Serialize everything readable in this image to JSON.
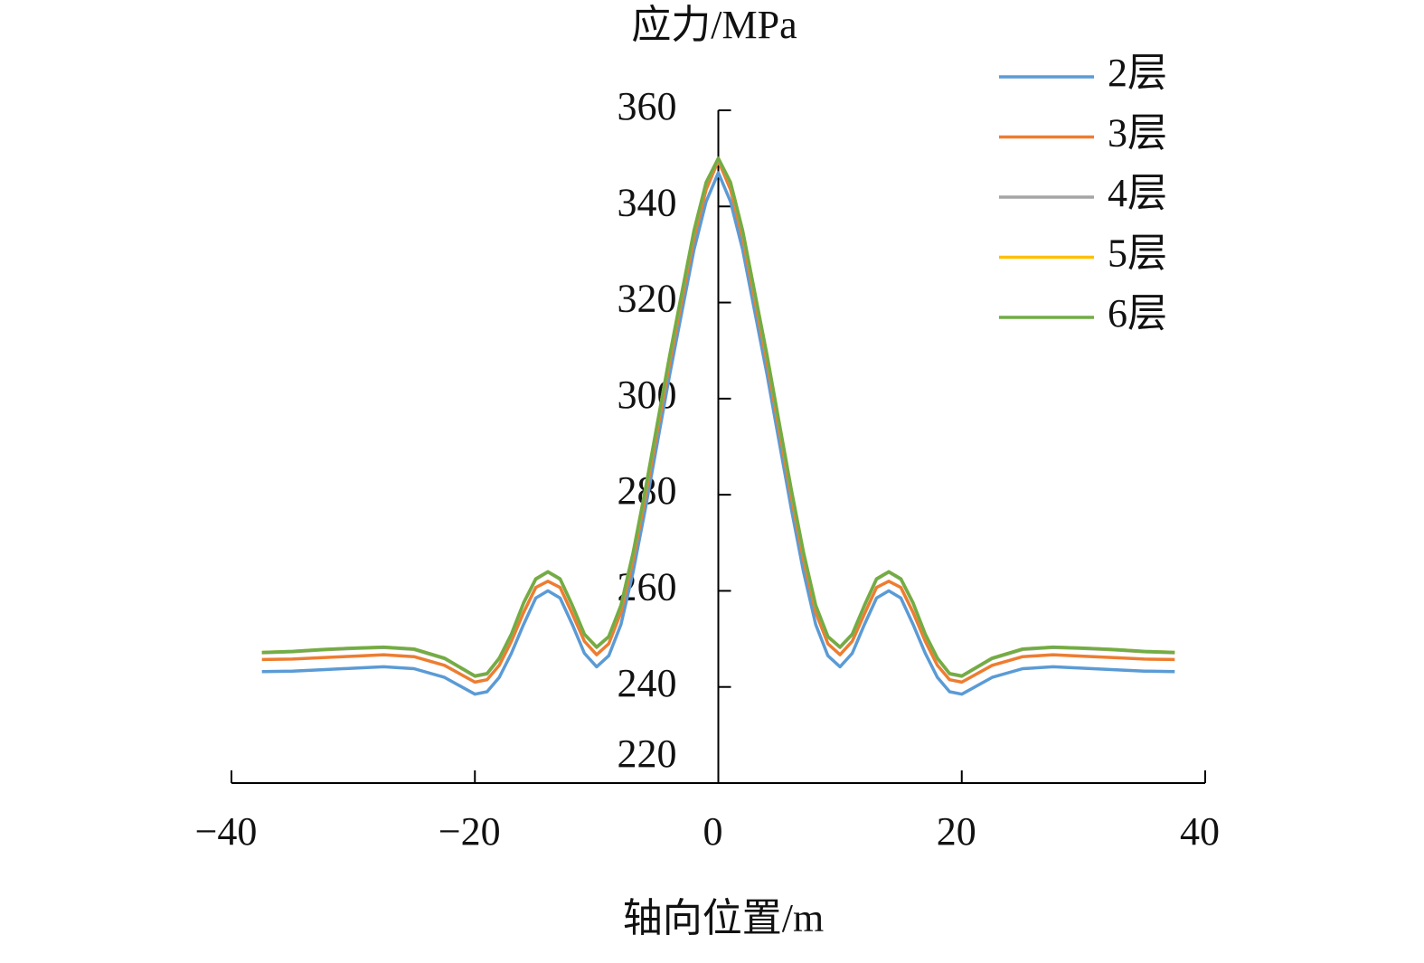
{
  "chart_data": {
    "type": "line",
    "x_label": "轴向位置/m",
    "y_label": "应力/MPa",
    "x": [
      -37.5,
      -35,
      -32.5,
      -30,
      -27.5,
      -25,
      -22.5,
      -20,
      -19,
      -18,
      -17,
      -16,
      -15,
      -14,
      -13,
      -12,
      -11,
      -10,
      -9,
      -8,
      -7,
      -6,
      -5,
      -4,
      -3,
      -2,
      -1,
      0,
      1,
      2,
      3,
      4,
      5,
      6,
      7,
      8,
      9,
      10,
      11,
      12,
      13,
      14,
      15,
      16,
      17,
      18,
      19,
      20,
      22.5,
      25,
      27.5,
      30,
      32.5,
      35,
      37.5
    ],
    "series": [
      {
        "name": "2层",
        "color": "#5b9bd5",
        "values": [
          243.2,
          243.3,
          243.6,
          243.9,
          244.2,
          243.8,
          242,
          238.5,
          239,
          242,
          247,
          253,
          258.5,
          260,
          258.5,
          253,
          247,
          244.2,
          246.5,
          253,
          264,
          277,
          291,
          305,
          318,
          331,
          341,
          347,
          341,
          331,
          318,
          305,
          291,
          277,
          264,
          253,
          246.5,
          244.2,
          247,
          253,
          258.5,
          260,
          258.5,
          253,
          247,
          242,
          239,
          238.5,
          242,
          243.8,
          244.2,
          243.9,
          243.6,
          243.3,
          243.2
        ]
      },
      {
        "name": "3层",
        "color": "#ed7d31",
        "values": [
          245.7,
          245.8,
          246.1,
          246.4,
          246.7,
          246.3,
          244.5,
          241,
          241.5,
          244.5,
          249.5,
          255.5,
          260.7,
          262,
          260.7,
          255.2,
          249.5,
          246.7,
          249,
          255.5,
          266.5,
          279.5,
          293.5,
          307.5,
          320.5,
          333.5,
          343.5,
          349.5,
          343.5,
          333.5,
          320.5,
          307.5,
          293.5,
          279.5,
          266.5,
          255.5,
          249,
          246.7,
          249.5,
          255.2,
          260.7,
          262,
          260.7,
          255.5,
          249.5,
          244.5,
          241.5,
          241,
          244.5,
          246.3,
          246.7,
          246.4,
          246.1,
          245.8,
          245.7
        ]
      },
      {
        "name": "4层",
        "color": "#a5a5a5",
        "values": [
          247.1,
          247.3,
          247.7,
          248,
          248.2,
          247.8,
          245.9,
          242.2,
          242.7,
          245.9,
          250.9,
          257.4,
          262.4,
          263.9,
          262.4,
          256.9,
          250.9,
          248.2,
          250.4,
          256.9,
          267.9,
          280.9,
          294.9,
          308.9,
          321.9,
          334.9,
          344.9,
          349.9,
          344.9,
          334.9,
          321.9,
          308.9,
          294.9,
          280.9,
          267.9,
          256.9,
          250.4,
          248.2,
          250.9,
          256.9,
          262.4,
          263.9,
          262.4,
          257.4,
          250.9,
          245.9,
          242.7,
          242.2,
          245.9,
          247.8,
          248.2,
          248,
          247.7,
          247.3,
          247.1
        ]
      },
      {
        "name": "5层",
        "color": "#ffc000",
        "values": [
          247.2,
          247.4,
          247.8,
          248.1,
          248.3,
          247.9,
          246,
          242.3,
          242.8,
          246,
          251,
          257.5,
          262.5,
          264,
          262.5,
          257,
          251,
          248.3,
          250.5,
          257,
          268,
          281,
          295,
          309,
          322,
          335,
          345,
          350,
          345,
          335,
          322,
          309,
          295,
          281,
          268,
          257,
          250.5,
          248.3,
          251,
          257,
          262.5,
          264,
          262.5,
          257.5,
          251,
          246,
          242.8,
          242.3,
          246,
          247.9,
          248.3,
          248.1,
          247.8,
          247.4,
          247.2
        ]
      },
      {
        "name": "6层",
        "color": "#70ad47",
        "values": [
          247.2,
          247.4,
          247.8,
          248.1,
          248.3,
          247.9,
          246,
          242.3,
          242.8,
          246,
          251,
          257.5,
          262.5,
          264,
          262.5,
          257,
          251,
          248.3,
          250.5,
          257,
          268,
          281,
          295,
          309,
          322,
          335,
          345,
          350,
          345,
          335,
          322,
          309,
          295,
          281,
          268,
          257,
          250.5,
          248.3,
          251,
          257,
          262.5,
          264,
          262.5,
          257.5,
          251,
          246,
          242.8,
          242.3,
          246,
          247.9,
          248.3,
          248.1,
          247.8,
          247.4,
          247.2
        ]
      }
    ],
    "xlim": [
      -40,
      40
    ],
    "xticks": [
      {
        "value": -40,
        "label": "−40"
      },
      {
        "value": -20,
        "label": "−20"
      },
      0,
      20,
      40
    ],
    "ylim": [
      220,
      360
    ],
    "yticks": [
      220,
      240,
      260,
      280,
      300,
      320,
      340,
      360
    ],
    "legend": "top-right"
  }
}
